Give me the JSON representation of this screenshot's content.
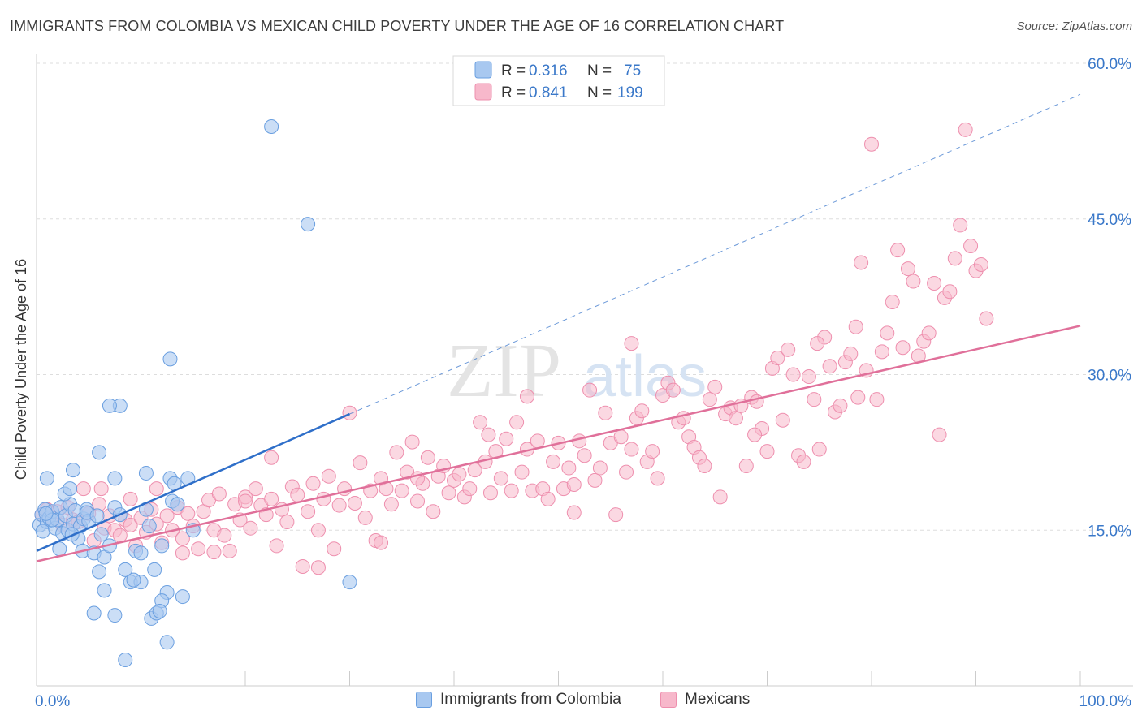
{
  "header": {
    "title": "IMMIGRANTS FROM COLOMBIA VS MEXICAN CHILD POVERTY UNDER THE AGE OF 16 CORRELATION CHART",
    "source": "Source: ZipAtlas.com"
  },
  "watermark": {
    "part1": "ZIP",
    "part2": "atlas"
  },
  "legend_top": {
    "rows": [
      {
        "r_label": "R = ",
        "r_value": "0.316",
        "n_label": "N = ",
        "n_value": "75"
      },
      {
        "r_label": "R = ",
        "r_value": "0.841",
        "n_label": "N = ",
        "n_value": "199"
      }
    ]
  },
  "legend_bottom": {
    "items": [
      {
        "label": "Immigrants from Colombia"
      },
      {
        "label": "Mexicans"
      }
    ]
  },
  "colors": {
    "colombia_fill": "#a8c8f0",
    "colombia_stroke": "#6a9fe0",
    "colombia_line": "#2f6fc9",
    "mexican_fill": "#f7b8cb",
    "mexican_stroke": "#ee8fae",
    "mexican_line": "#e0709a",
    "axis_text": "#3a78c9",
    "grid": "#dddddd"
  },
  "chart_data": {
    "type": "scatter",
    "title": "IMMIGRANTS FROM COLOMBIA VS MEXICAN CHILD POVERTY UNDER THE AGE OF 16 CORRELATION CHART",
    "xlabel": "",
    "ylabel": "Child Poverty Under the Age of 16",
    "xlim": [
      0,
      100
    ],
    "ylim": [
      0,
      60
    ],
    "x_tick_labels": [
      "0.0%",
      "100.0%"
    ],
    "y_ticks": [
      15,
      30,
      45,
      60
    ],
    "y_tick_labels": [
      "15.0%",
      "30.0%",
      "45.0%",
      "60.0%"
    ],
    "grid": true,
    "series": [
      {
        "name": "Immigrants from Colombia",
        "r": 0.316,
        "n": 75,
        "trend": {
          "x0": 0,
          "y0": 13.0,
          "x1": 30,
          "y1": 26.2,
          "dashed_to": {
            "x": 100,
            "y": 57.0
          }
        },
        "points": [
          [
            0.3,
            15.5
          ],
          [
            0.5,
            16.5
          ],
          [
            0.8,
            17.0
          ],
          [
            1.0,
            15.8
          ],
          [
            1.2,
            16.2
          ],
          [
            0.6,
            14.9
          ],
          [
            1.5,
            16.8
          ],
          [
            1.8,
            15.2
          ],
          [
            2.0,
            16.0
          ],
          [
            2.3,
            17.2
          ],
          [
            2.5,
            14.7
          ],
          [
            2.8,
            16.4
          ],
          [
            3.0,
            15.0
          ],
          [
            3.2,
            17.5
          ],
          [
            3.5,
            15.6
          ],
          [
            3.7,
            16.9
          ],
          [
            4.0,
            14.2
          ],
          [
            4.2,
            15.4
          ],
          [
            4.5,
            16.1
          ],
          [
            4.8,
            17.0
          ],
          [
            1.0,
            20.0
          ],
          [
            2.2,
            13.2
          ],
          [
            3.4,
            14.6
          ],
          [
            4.4,
            13.0
          ],
          [
            5.0,
            15.9
          ],
          [
            5.5,
            12.8
          ],
          [
            6.0,
            11.0
          ],
          [
            6.5,
            12.4
          ],
          [
            7.0,
            13.5
          ],
          [
            7.5,
            17.2
          ],
          [
            8.0,
            16.5
          ],
          [
            8.5,
            11.2
          ],
          [
            9.0,
            10.0
          ],
          [
            9.5,
            13.0
          ],
          [
            10.0,
            12.8
          ],
          [
            10.5,
            17.0
          ],
          [
            11.0,
            6.5
          ],
          [
            11.5,
            7.0
          ],
          [
            12.0,
            13.5
          ],
          [
            12.5,
            9.0
          ],
          [
            13.0,
            17.8
          ],
          [
            14.0,
            8.6
          ],
          [
            14.5,
            20.0
          ],
          [
            15.0,
            15.0
          ],
          [
            3.5,
            20.8
          ],
          [
            6.0,
            22.5
          ],
          [
            7.5,
            20.0
          ],
          [
            8.0,
            27.0
          ],
          [
            10.5,
            20.5
          ],
          [
            12.0,
            8.2
          ],
          [
            5.5,
            7.0
          ],
          [
            7.5,
            6.8
          ],
          [
            10.0,
            10.0
          ],
          [
            12.5,
            4.2
          ],
          [
            8.5,
            2.5
          ],
          [
            12.8,
            20.0
          ],
          [
            13.2,
            19.5
          ],
          [
            7.0,
            27.0
          ],
          [
            6.5,
            9.2
          ],
          [
            11.8,
            7.2
          ],
          [
            4.8,
            16.7
          ],
          [
            2.7,
            18.5
          ],
          [
            1.5,
            16.0
          ],
          [
            0.9,
            16.6
          ],
          [
            6.2,
            14.6
          ],
          [
            10.8,
            15.4
          ],
          [
            9.3,
            10.2
          ],
          [
            11.3,
            11.2
          ],
          [
            13.5,
            17.5
          ],
          [
            5.8,
            16.4
          ],
          [
            22.5,
            53.9
          ],
          [
            26.0,
            44.5
          ],
          [
            12.8,
            31.5
          ],
          [
            30.0,
            10.0
          ],
          [
            3.2,
            19.0
          ]
        ]
      },
      {
        "name": "Mexicans",
        "r": 0.841,
        "n": 199,
        "trend": {
          "x0": 0,
          "y0": 12.0,
          "x1": 100,
          "y1": 34.7
        },
        "points": [
          [
            0.5,
            16.5
          ],
          [
            1.0,
            17.0
          ],
          [
            1.5,
            16.2
          ],
          [
            2.0,
            16.8
          ],
          [
            2.5,
            15.5
          ],
          [
            3.0,
            17.2
          ],
          [
            3.5,
            16.0
          ],
          [
            4.0,
            15.8
          ],
          [
            4.5,
            19.0
          ],
          [
            5.0,
            16.6
          ],
          [
            5.5,
            14.0
          ],
          [
            6.0,
            17.5
          ],
          [
            6.5,
            15.2
          ],
          [
            7.0,
            16.4
          ],
          [
            7.5,
            15.0
          ],
          [
            8.0,
            14.5
          ],
          [
            8.5,
            16.0
          ],
          [
            9.0,
            15.5
          ],
          [
            9.5,
            13.5
          ],
          [
            10.0,
            16.2
          ],
          [
            10.5,
            14.8
          ],
          [
            11.0,
            17.0
          ],
          [
            11.5,
            15.6
          ],
          [
            12.0,
            13.8
          ],
          [
            12.5,
            16.4
          ],
          [
            13.0,
            15.0
          ],
          [
            13.5,
            17.2
          ],
          [
            14.0,
            14.2
          ],
          [
            14.5,
            16.6
          ],
          [
            15.0,
            15.4
          ],
          [
            15.5,
            13.2
          ],
          [
            16.0,
            16.8
          ],
          [
            16.5,
            17.9
          ],
          [
            17.0,
            15.0
          ],
          [
            17.5,
            18.5
          ],
          [
            18.0,
            14.5
          ],
          [
            18.5,
            13.0
          ],
          [
            19.0,
            17.5
          ],
          [
            19.5,
            16.0
          ],
          [
            20.0,
            18.2
          ],
          [
            20.5,
            15.2
          ],
          [
            21.0,
            19.0
          ],
          [
            21.5,
            17.4
          ],
          [
            22.0,
            16.5
          ],
          [
            22.5,
            18.0
          ],
          [
            23.0,
            13.5
          ],
          [
            23.5,
            17.0
          ],
          [
            24.0,
            15.8
          ],
          [
            24.5,
            19.2
          ],
          [
            25.0,
            18.4
          ],
          [
            25.5,
            11.5
          ],
          [
            26.0,
            16.8
          ],
          [
            26.5,
            19.5
          ],
          [
            27.0,
            15.0
          ],
          [
            27.5,
            18.0
          ],
          [
            28.0,
            20.2
          ],
          [
            28.5,
            13.2
          ],
          [
            29.0,
            17.4
          ],
          [
            29.5,
            19.0
          ],
          [
            30.0,
            26.3
          ],
          [
            30.5,
            17.6
          ],
          [
            31.0,
            21.5
          ],
          [
            31.5,
            16.2
          ],
          [
            32.0,
            18.8
          ],
          [
            32.5,
            14.0
          ],
          [
            33.0,
            20.0
          ],
          [
            33.5,
            19.0
          ],
          [
            34.0,
            17.5
          ],
          [
            34.5,
            22.5
          ],
          [
            35.0,
            18.8
          ],
          [
            35.5,
            20.6
          ],
          [
            36.0,
            23.5
          ],
          [
            36.5,
            17.8
          ],
          [
            37.0,
            19.5
          ],
          [
            37.5,
            22.0
          ],
          [
            38.0,
            16.8
          ],
          [
            38.5,
            20.2
          ],
          [
            39.0,
            21.2
          ],
          [
            39.5,
            18.6
          ],
          [
            40.0,
            19.8
          ],
          [
            40.5,
            20.4
          ],
          [
            41.0,
            18.2
          ],
          [
            41.5,
            19.0
          ],
          [
            42.0,
            20.8
          ],
          [
            42.5,
            25.4
          ],
          [
            43.0,
            21.6
          ],
          [
            43.5,
            18.6
          ],
          [
            44.0,
            22.6
          ],
          [
            44.5,
            20.0
          ],
          [
            45.0,
            23.8
          ],
          [
            45.5,
            18.8
          ],
          [
            46.0,
            25.4
          ],
          [
            46.5,
            20.6
          ],
          [
            47.0,
            22.8
          ],
          [
            47.5,
            18.8
          ],
          [
            48.0,
            23.6
          ],
          [
            48.5,
            19.0
          ],
          [
            49.0,
            18.0
          ],
          [
            49.5,
            21.6
          ],
          [
            50.0,
            23.4
          ],
          [
            50.5,
            19.0
          ],
          [
            51.0,
            21.0
          ],
          [
            51.5,
            19.4
          ],
          [
            52.0,
            23.6
          ],
          [
            52.5,
            22.2
          ],
          [
            53.0,
            28.5
          ],
          [
            53.5,
            19.8
          ],
          [
            54.0,
            21.0
          ],
          [
            54.5,
            26.3
          ],
          [
            55.0,
            23.4
          ],
          [
            55.5,
            16.5
          ],
          [
            56.0,
            24.0
          ],
          [
            56.5,
            20.6
          ],
          [
            57.0,
            22.8
          ],
          [
            57.5,
            25.8
          ],
          [
            58.0,
            26.5
          ],
          [
            58.5,
            21.6
          ],
          [
            59.0,
            22.6
          ],
          [
            59.5,
            20.0
          ],
          [
            60.0,
            28.0
          ],
          [
            60.5,
            29.2
          ],
          [
            61.0,
            28.5
          ],
          [
            61.5,
            25.4
          ],
          [
            62.0,
            25.8
          ],
          [
            62.5,
            24.0
          ],
          [
            63.0,
            23.0
          ],
          [
            63.5,
            22.0
          ],
          [
            64.0,
            21.2
          ],
          [
            64.5,
            27.6
          ],
          [
            65.0,
            28.8
          ],
          [
            65.5,
            18.2
          ],
          [
            66.0,
            26.2
          ],
          [
            66.5,
            26.8
          ],
          [
            67.0,
            25.8
          ],
          [
            67.5,
            27.0
          ],
          [
            68.0,
            21.2
          ],
          [
            68.5,
            27.8
          ],
          [
            69.0,
            27.4
          ],
          [
            69.5,
            24.8
          ],
          [
            70.0,
            22.6
          ],
          [
            70.5,
            30.6
          ],
          [
            71.0,
            31.6
          ],
          [
            71.5,
            25.6
          ],
          [
            72.0,
            32.4
          ],
          [
            72.5,
            30.0
          ],
          [
            73.0,
            22.2
          ],
          [
            73.5,
            21.6
          ],
          [
            74.0,
            29.8
          ],
          [
            74.5,
            27.6
          ],
          [
            75.0,
            22.8
          ],
          [
            75.5,
            33.6
          ],
          [
            76.0,
            30.8
          ],
          [
            76.5,
            26.4
          ],
          [
            77.0,
            27.0
          ],
          [
            77.5,
            31.2
          ],
          [
            78.0,
            32.0
          ],
          [
            78.5,
            34.6
          ],
          [
            79.0,
            40.8
          ],
          [
            79.5,
            30.4
          ],
          [
            80.0,
            52.2
          ],
          [
            80.5,
            27.6
          ],
          [
            81.0,
            32.2
          ],
          [
            81.5,
            34.0
          ],
          [
            82.0,
            37.0
          ],
          [
            82.5,
            42.0
          ],
          [
            83.0,
            32.6
          ],
          [
            83.5,
            40.2
          ],
          [
            84.0,
            39.0
          ],
          [
            84.5,
            31.8
          ],
          [
            85.0,
            33.2
          ],
          [
            85.5,
            34.0
          ],
          [
            86.0,
            38.8
          ],
          [
            86.5,
            24.2
          ],
          [
            87.0,
            37.4
          ],
          [
            87.5,
            38.0
          ],
          [
            88.0,
            41.2
          ],
          [
            88.5,
            44.4
          ],
          [
            89.0,
            53.6
          ],
          [
            89.5,
            42.4
          ],
          [
            90.0,
            40.0
          ],
          [
            90.5,
            40.6
          ],
          [
            91.0,
            35.4
          ],
          [
            78.7,
            27.8
          ],
          [
            74.8,
            33.0
          ],
          [
            68.8,
            24.2
          ],
          [
            57.0,
            33.0
          ],
          [
            51.5,
            16.7
          ],
          [
            47.0,
            27.9
          ],
          [
            43.3,
            24.2
          ],
          [
            36.5,
            20.0
          ],
          [
            33.0,
            13.8
          ],
          [
            27.0,
            11.4
          ],
          [
            22.5,
            22.0
          ],
          [
            20.0,
            17.8
          ],
          [
            17.0,
            12.9
          ],
          [
            14.0,
            12.8
          ],
          [
            11.5,
            19.0
          ],
          [
            9.0,
            18.0
          ],
          [
            6.2,
            19.0
          ]
        ]
      }
    ]
  }
}
